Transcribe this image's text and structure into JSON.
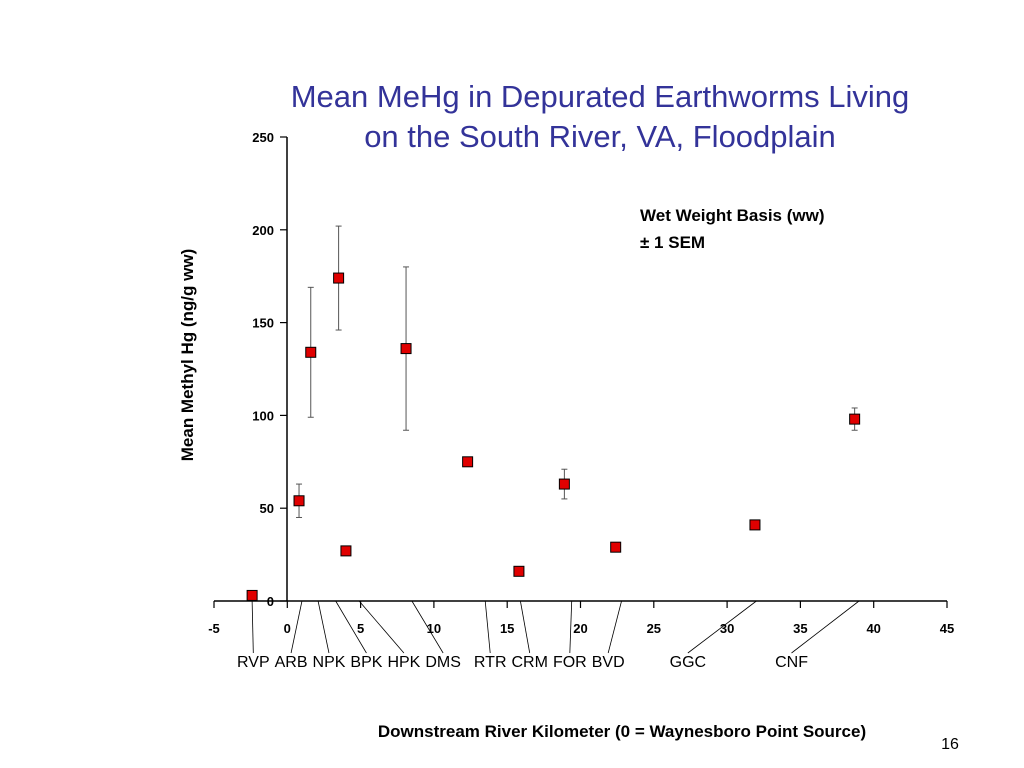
{
  "slide": {
    "title_line1": "Mean MeHg in Depurated Earthworms Living",
    "title_line2": "on the South River, VA, Floodplain",
    "page_number": "16",
    "title_color": "#333399"
  },
  "chart_data": {
    "type": "scatter",
    "xlabel": "Downstream River Kilometer (0 = Waynesboro Point Source)",
    "ylabel": "Mean Methyl Hg (ng/g ww)",
    "xlim": [
      -5,
      45
    ],
    "ylim": [
      0,
      250
    ],
    "x_ticks": [
      -5,
      0,
      5,
      10,
      15,
      20,
      25,
      30,
      35,
      40,
      45
    ],
    "y_ticks": [
      0,
      50,
      100,
      150,
      200,
      250
    ],
    "annotation_lines": [
      "Wet Weight Basis (ww)",
      "± 1 SEM"
    ],
    "marker_color": "#e00000",
    "points": [
      {
        "x": -2.4,
        "y": 3,
        "sem": 0
      },
      {
        "x": 0.8,
        "y": 54,
        "sem": 9
      },
      {
        "x": 1.6,
        "y": 134,
        "sem": 35
      },
      {
        "x": 3.5,
        "y": 174,
        "sem": 28
      },
      {
        "x": 4.0,
        "y": 27,
        "sem": 0
      },
      {
        "x": 8.1,
        "y": 136,
        "sem": 44
      },
      {
        "x": 12.3,
        "y": 75,
        "sem": 0
      },
      {
        "x": 15.8,
        "y": 16,
        "sem": 0
      },
      {
        "x": 18.9,
        "y": 63,
        "sem": 8
      },
      {
        "x": 22.4,
        "y": 29,
        "sem": 0
      },
      {
        "x": 31.9,
        "y": 41,
        "sem": 0
      },
      {
        "x": 38.7,
        "y": 98,
        "sem": 6
      }
    ],
    "site_labels": [
      {
        "label": "RVP",
        "x": -2.4
      },
      {
        "label": "ARB",
        "x": 1.0
      },
      {
        "label": "NPK",
        "x": 2.1
      },
      {
        "label": "BPK",
        "x": 3.3
      },
      {
        "label": "HPK",
        "x": 4.9
      },
      {
        "label": "DMS",
        "x": 8.5
      },
      {
        "label": "RTR",
        "x": 13.5
      },
      {
        "label": "CRM",
        "x": 15.9
      },
      {
        "label": "FOR",
        "x": 19.4
      },
      {
        "label": "BVD",
        "x": 22.8
      },
      {
        "label": "GGC",
        "x": 32.0
      },
      {
        "label": "CNF",
        "x": 39.0
      }
    ]
  }
}
